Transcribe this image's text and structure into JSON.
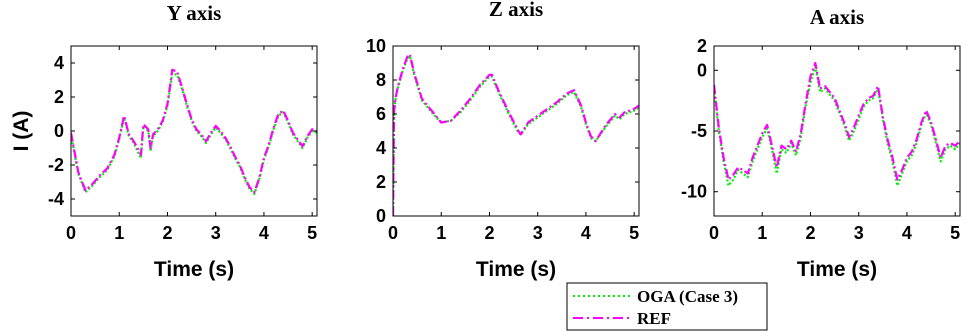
{
  "chart_data": [
    {
      "type": "line",
      "title": "Y axis",
      "xlabel": "Time (s)",
      "ylabel": "I (A)",
      "xlim": [
        0,
        5.1
      ],
      "ylim": [
        -5,
        5
      ],
      "xticks": [
        0,
        1,
        2,
        3,
        4,
        5
      ],
      "yticks": [
        -4,
        -2,
        0,
        2,
        4
      ],
      "series": [
        {
          "name": "OGA (Case 3)",
          "x": [
            0,
            0.15,
            0.3,
            0.45,
            0.6,
            0.75,
            0.9,
            1.0,
            1.1,
            1.2,
            1.3,
            1.4,
            1.45,
            1.5,
            1.6,
            1.65,
            1.7,
            1.8,
            1.9,
            2.0,
            2.1,
            2.2,
            2.3,
            2.4,
            2.5,
            2.6,
            2.7,
            2.8,
            2.9,
            3.0,
            3.1,
            3.2,
            3.3,
            3.4,
            3.5,
            3.6,
            3.7,
            3.8,
            3.9,
            4.0,
            4.1,
            4.2,
            4.3,
            4.4,
            4.5,
            4.6,
            4.7,
            4.8,
            4.9,
            5.0,
            5.1
          ],
          "y": [
            -0.2,
            -2.5,
            -3.6,
            -3.2,
            -2.7,
            -2.3,
            -1.5,
            -0.5,
            0.8,
            -0.3,
            -0.7,
            -1.3,
            -1.6,
            0.3,
            0.0,
            -1.2,
            -0.3,
            0.0,
            0.5,
            1.5,
            3.4,
            3.3,
            2.5,
            1.5,
            0.6,
            0.0,
            -0.3,
            -0.7,
            -0.2,
            0.2,
            -0.1,
            -0.5,
            -1.0,
            -1.6,
            -2.1,
            -2.8,
            -3.4,
            -3.7,
            -2.9,
            -1.7,
            -0.9,
            0.1,
            0.9,
            1.1,
            0.5,
            -0.2,
            -0.6,
            -1.0,
            -0.4,
            0.0,
            -0.1
          ]
        },
        {
          "name": "REF",
          "x": [
            0,
            0.15,
            0.3,
            0.45,
            0.6,
            0.75,
            0.9,
            1.0,
            1.1,
            1.2,
            1.3,
            1.4,
            1.45,
            1.5,
            1.6,
            1.65,
            1.7,
            1.8,
            1.9,
            2.0,
            2.1,
            2.2,
            2.3,
            2.4,
            2.5,
            2.6,
            2.7,
            2.8,
            2.9,
            3.0,
            3.1,
            3.2,
            3.3,
            3.4,
            3.5,
            3.6,
            3.7,
            3.8,
            3.9,
            4.0,
            4.1,
            4.2,
            4.3,
            4.4,
            4.5,
            4.6,
            4.7,
            4.8,
            4.9,
            5.0,
            5.1
          ],
          "y": [
            -0.1,
            -2.4,
            -3.5,
            -3.1,
            -2.6,
            -2.2,
            -1.4,
            -0.4,
            0.9,
            -0.2,
            -0.6,
            -1.1,
            -1.4,
            0.4,
            0.1,
            -1.0,
            -0.2,
            0.1,
            0.6,
            1.6,
            3.6,
            3.5,
            2.6,
            1.6,
            0.7,
            0.1,
            -0.2,
            -0.6,
            -0.1,
            0.3,
            0.0,
            -0.4,
            -0.9,
            -1.5,
            -2.0,
            -2.7,
            -3.3,
            -3.6,
            -2.8,
            -1.6,
            -0.8,
            0.2,
            1.0,
            1.2,
            0.6,
            -0.1,
            -0.5,
            -0.9,
            -0.3,
            0.1,
            0.0
          ]
        }
      ]
    },
    {
      "type": "line",
      "title": "Z axis",
      "xlabel": "Time (s)",
      "ylabel": "",
      "xlim": [
        0,
        5.1
      ],
      "ylim": [
        0,
        10
      ],
      "xticks": [
        0,
        1,
        2,
        3,
        4,
        5
      ],
      "yticks": [
        0,
        2,
        4,
        6,
        8,
        10
      ],
      "series": [
        {
          "name": "OGA (Case 3)",
          "x": [
            0,
            0.02,
            0.05,
            0.1,
            0.2,
            0.3,
            0.35,
            0.45,
            0.6,
            0.8,
            1.0,
            1.2,
            1.4,
            1.6,
            1.8,
            2.0,
            2.05,
            2.2,
            2.4,
            2.6,
            2.65,
            2.8,
            3.0,
            3.2,
            3.4,
            3.6,
            3.75,
            3.9,
            4.0,
            4.1,
            4.2,
            4.4,
            4.6,
            4.7,
            4.8,
            5.0,
            5.1
          ],
          "y": [
            0.0,
            6.0,
            6.8,
            7.5,
            8.5,
            9.3,
            9.4,
            8.2,
            6.8,
            6.1,
            5.5,
            5.6,
            6.1,
            6.8,
            7.6,
            8.2,
            8.2,
            7.2,
            6.0,
            4.9,
            4.8,
            5.4,
            5.8,
            6.2,
            6.6,
            7.1,
            7.3,
            6.4,
            5.4,
            4.6,
            4.4,
            5.2,
            5.9,
            5.7,
            6.0,
            6.2,
            6.4
          ]
        },
        {
          "name": "REF",
          "x": [
            0,
            0.02,
            0.05,
            0.1,
            0.2,
            0.3,
            0.35,
            0.45,
            0.6,
            0.8,
            1.0,
            1.2,
            1.4,
            1.6,
            1.8,
            2.0,
            2.05,
            2.2,
            2.4,
            2.6,
            2.65,
            2.8,
            3.0,
            3.2,
            3.4,
            3.6,
            3.75,
            3.9,
            4.0,
            4.1,
            4.2,
            4.4,
            4.6,
            4.7,
            4.8,
            5.0,
            5.1
          ],
          "y": [
            0.0,
            6.1,
            6.9,
            7.6,
            8.6,
            9.4,
            9.5,
            8.3,
            6.9,
            6.2,
            5.5,
            5.6,
            6.2,
            6.9,
            7.7,
            8.3,
            8.3,
            7.3,
            6.1,
            5.0,
            4.8,
            5.5,
            5.9,
            6.3,
            6.7,
            7.2,
            7.4,
            6.5,
            5.5,
            4.7,
            4.4,
            5.3,
            6.0,
            5.8,
            6.1,
            6.3,
            6.5
          ]
        }
      ]
    },
    {
      "type": "line",
      "title": "A axis",
      "xlabel": "Time (s)",
      "ylabel": "",
      "xlim": [
        0,
        5.1
      ],
      "ylim": [
        -12,
        2
      ],
      "xticks": [
        0,
        1,
        2,
        3,
        4,
        5
      ],
      "yticks": [
        -10,
        -5,
        0,
        2
      ],
      "series": [
        {
          "name": "OGA (Case 3)",
          "x": [
            0,
            0.1,
            0.2,
            0.3,
            0.4,
            0.5,
            0.6,
            0.7,
            0.8,
            0.9,
            1.0,
            1.1,
            1.2,
            1.3,
            1.4,
            1.5,
            1.6,
            1.7,
            1.8,
            1.9,
            2.0,
            2.1,
            2.2,
            2.3,
            2.4,
            2.5,
            2.6,
            2.7,
            2.8,
            2.9,
            3.0,
            3.1,
            3.2,
            3.3,
            3.4,
            3.5,
            3.6,
            3.7,
            3.8,
            3.9,
            4.0,
            4.1,
            4.2,
            4.3,
            4.4,
            4.5,
            4.6,
            4.7,
            4.8,
            4.9,
            5.0,
            5.1
          ],
          "y": [
            -1.5,
            -5.0,
            -7.5,
            -9.5,
            -9.0,
            -8.2,
            -8.5,
            -8.8,
            -7.5,
            -6.5,
            -5.5,
            -4.8,
            -6.5,
            -8.5,
            -6.5,
            -6.8,
            -6.0,
            -7.0,
            -5.5,
            -3.0,
            -1.0,
            0.3,
            -1.8,
            -1.5,
            -2.0,
            -2.5,
            -3.5,
            -4.5,
            -5.8,
            -5.0,
            -4.0,
            -3.0,
            -2.5,
            -2.3,
            -1.5,
            -4.0,
            -6.0,
            -7.5,
            -9.5,
            -8.5,
            -7.5,
            -7.0,
            -6.0,
            -4.5,
            -3.5,
            -4.5,
            -6.0,
            -7.5,
            -6.5,
            -6.2,
            -6.5,
            -6.0
          ]
        },
        {
          "name": "REF",
          "x": [
            0,
            0.1,
            0.2,
            0.3,
            0.4,
            0.5,
            0.6,
            0.7,
            0.8,
            0.9,
            1.0,
            1.1,
            1.2,
            1.3,
            1.4,
            1.5,
            1.6,
            1.7,
            1.8,
            1.9,
            2.0,
            2.1,
            2.2,
            2.3,
            2.4,
            2.5,
            2.6,
            2.7,
            2.8,
            2.9,
            3.0,
            3.1,
            3.2,
            3.3,
            3.4,
            3.5,
            3.6,
            3.7,
            3.8,
            3.9,
            4.0,
            4.1,
            4.2,
            4.3,
            4.4,
            4.5,
            4.6,
            4.7,
            4.8,
            4.9,
            5.0,
            5.1
          ],
          "y": [
            -1.2,
            -4.7,
            -7.2,
            -9.0,
            -8.6,
            -8.0,
            -8.2,
            -8.5,
            -7.2,
            -6.2,
            -5.2,
            -4.5,
            -6.2,
            -8.0,
            -6.2,
            -6.5,
            -5.8,
            -6.7,
            -5.2,
            -2.7,
            -0.5,
            0.6,
            -1.5,
            -1.3,
            -1.8,
            -2.3,
            -3.3,
            -4.3,
            -5.5,
            -4.7,
            -3.7,
            -2.8,
            -2.3,
            -2.1,
            -1.3,
            -3.8,
            -5.7,
            -7.2,
            -9.0,
            -8.2,
            -7.2,
            -6.7,
            -5.7,
            -4.3,
            -3.3,
            -4.3,
            -5.7,
            -7.2,
            -6.2,
            -6.0,
            -6.2,
            -5.8
          ]
        }
      ]
    }
  ],
  "colors": {
    "oga": "#00ee00",
    "ref": "#ff00ff",
    "axis": "#000000"
  },
  "legend": {
    "position": "bottom-center",
    "entries": [
      {
        "label": "OGA (Case 3)",
        "style": "dotted",
        "color": "#00ee00"
      },
      {
        "label": "REF",
        "style": "dash-dot",
        "color": "#ff00ff"
      }
    ]
  }
}
